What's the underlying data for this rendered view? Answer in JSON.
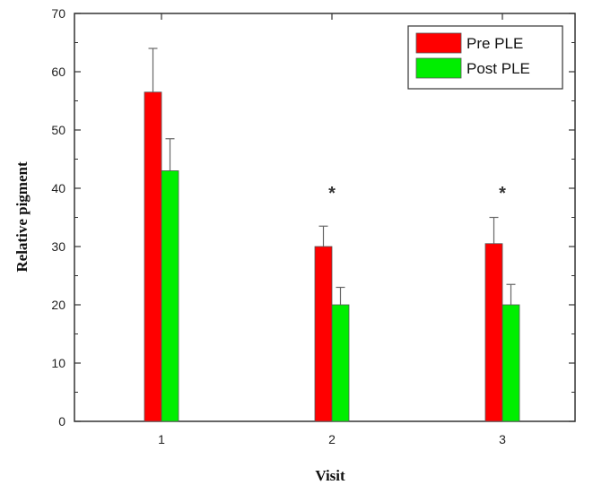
{
  "chart_data": {
    "type": "bar",
    "xlabel": "Visit",
    "ylabel": "Relative pigment",
    "ylim": [
      0,
      70
    ],
    "yticks": [
      0,
      10,
      20,
      30,
      40,
      50,
      60,
      70
    ],
    "categories": [
      "1",
      "2",
      "3"
    ],
    "series": [
      {
        "name": "Pre PLE",
        "color": "#ff0000",
        "values": [
          56.5,
          30,
          30.5
        ],
        "errors": [
          7.5,
          3.5,
          4.5
        ]
      },
      {
        "name": "Post PLE",
        "color": "#00ee00",
        "values": [
          43,
          20,
          20
        ],
        "errors": [
          5.5,
          3,
          3.5
        ]
      }
    ],
    "annotations": [
      {
        "category": "2",
        "text": "*",
        "y": 40
      },
      {
        "category": "3",
        "text": "*",
        "y": 40
      }
    ],
    "legend": "top-right",
    "grid": false
  }
}
